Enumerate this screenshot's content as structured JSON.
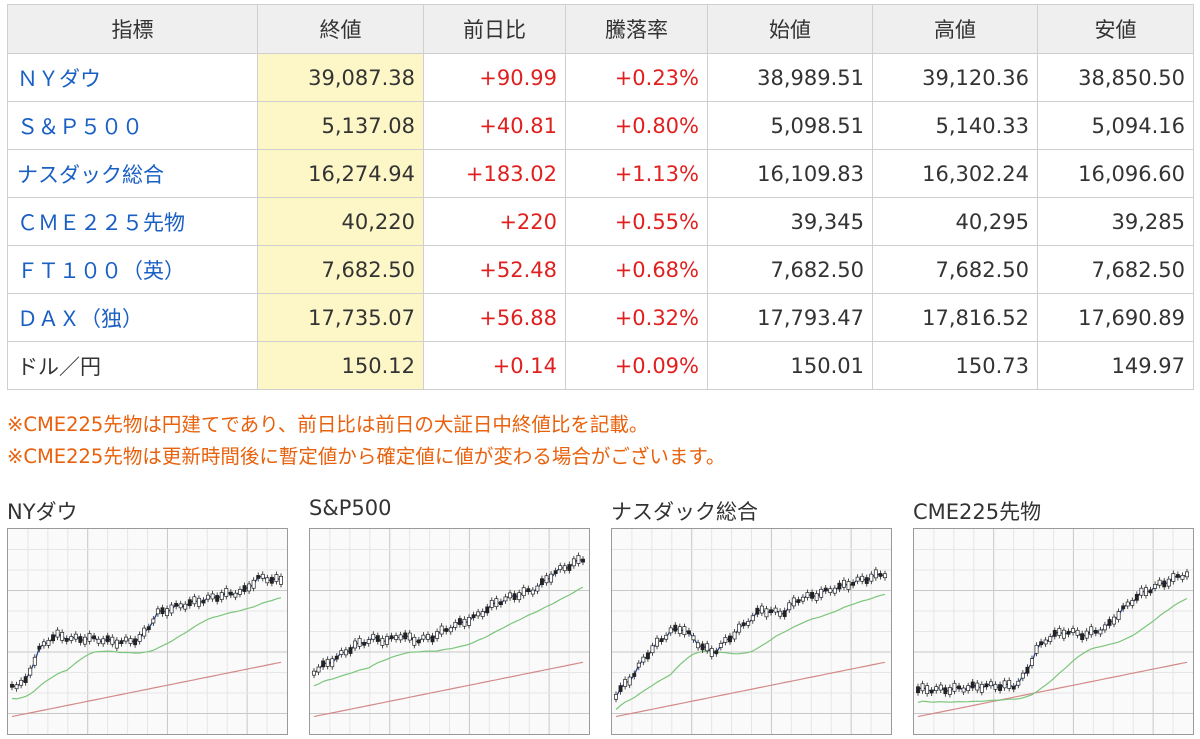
{
  "table": {
    "headers": [
      "指標",
      "終値",
      "前日比",
      "騰落率",
      "始値",
      "高値",
      "安値"
    ],
    "rows": [
      {
        "name": "ＮＹダウ",
        "link": true,
        "close": "39,087.38",
        "change": "+90.99",
        "rate": "+0.23%",
        "open": "38,989.51",
        "high": "39,120.36",
        "low": "38,850.50"
      },
      {
        "name": "Ｓ＆Ｐ５００",
        "link": true,
        "close": "5,137.08",
        "change": "+40.81",
        "rate": "+0.80%",
        "open": "5,098.51",
        "high": "5,140.33",
        "low": "5,094.16"
      },
      {
        "name": "ナスダック総合",
        "link": true,
        "close": "16,274.94",
        "change": "+183.02",
        "rate": "+1.13%",
        "open": "16,109.83",
        "high": "16,302.24",
        "low": "16,096.60"
      },
      {
        "name": "ＣＭＥ２２５先物",
        "link": true,
        "close": "40,220",
        "change": "+220",
        "rate": "+0.55%",
        "open": "39,345",
        "high": "40,295",
        "low": "39,285"
      },
      {
        "name": "ＦＴ１００（英）",
        "link": true,
        "close": "7,682.50",
        "change": "+52.48",
        "rate": "+0.68%",
        "open": "7,682.50",
        "high": "7,682.50",
        "low": "7,682.50"
      },
      {
        "name": "ＤＡＸ（独）",
        "link": true,
        "close": "17,735.07",
        "change": "+56.88",
        "rate": "+0.32%",
        "open": "17,793.47",
        "high": "17,816.52",
        "low": "17,690.89"
      },
      {
        "name": "ドル／円",
        "link": false,
        "close": "150.12",
        "change": "+0.14",
        "rate": "+0.09%",
        "open": "150.01",
        "high": "150.73",
        "low": "149.97"
      }
    ]
  },
  "notes": [
    "※CME225先物は円建てであり、前日比は前日の大証日中終値比を記載。",
    "※CME225先物は更新時間後に暫定値から確定値に値が変わる場合がございます。"
  ],
  "charts": [
    {
      "title": "NYダウ"
    },
    {
      "title": "S&P500"
    },
    {
      "title": "ナスダック総合"
    },
    {
      "title": "CME225先物"
    }
  ],
  "colors": {
    "link": "#1a5fc4",
    "positive": "#e0201f",
    "note": "#e8610c",
    "close_highlight": "#fdf7c8",
    "ma_short": "#1f3f8f",
    "ma_mid": "#7cc57c",
    "ma_long": "#d48a8a"
  }
}
